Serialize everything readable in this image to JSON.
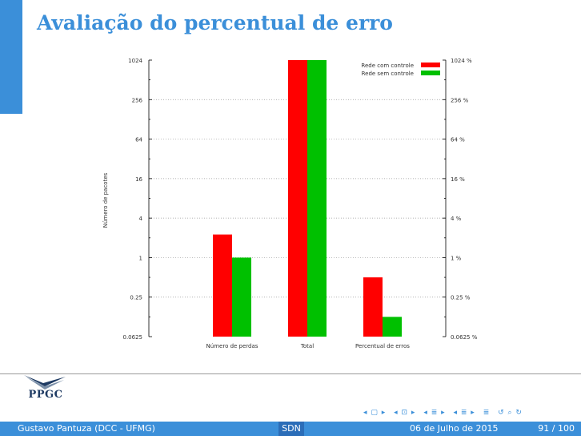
{
  "slide": {
    "title": "Avaliação do percentual de erro"
  },
  "chart_data": {
    "type": "bar",
    "categories": [
      "Número de perdas",
      "Total",
      "Percentual de erros"
    ],
    "series": [
      {
        "name": "Rede com controle",
        "color": "#ff0000",
        "values": [
          2.25,
          1024,
          0.5
        ]
      },
      {
        "name": "Rede sem controle",
        "color": "#00c000",
        "values": [
          1,
          1024,
          0.125
        ]
      }
    ],
    "ylabel": "Número de pacotes",
    "scale": "log2",
    "ylim": [
      0.0625,
      1024
    ],
    "left_ticks": [
      "1024",
      "256",
      "64",
      "16",
      "4",
      "1",
      "0.25",
      "0.0625"
    ],
    "right_ticks": [
      "1024 %",
      "256 %",
      "64 %",
      "16 %",
      "4 %",
      "1 %",
      "0.25 %",
      "0.0625 %"
    ],
    "grid": true,
    "legend_position": "top-right"
  },
  "logo": {
    "text": "PPGC"
  },
  "nav": {
    "symbols": [
      "◂ ▢ ▸",
      "◂ ⊡ ▸",
      "◂ ≣ ▸",
      "◂ ≣ ▸",
      "≣",
      "↺ ⌕ ↻"
    ]
  },
  "footer": {
    "author": "Gustavo Pantuza (DCC - UFMG)",
    "center": "SDN",
    "date": "06 de Julho de 2015",
    "page": "91 / 100"
  }
}
